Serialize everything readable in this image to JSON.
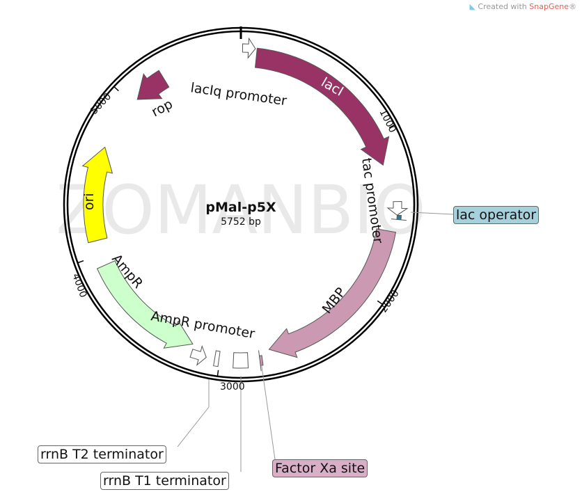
{
  "credit": {
    "prefix": "Created with ",
    "brand": "SnapGene",
    "suffix": "®"
  },
  "watermark": "ZOMANBIO",
  "plasmid": {
    "name": "pMal-p5X",
    "length_label": "5752 bp",
    "length": 5752
  },
  "ticks": [
    {
      "bp": 1000,
      "label": "1000"
    },
    {
      "bp": 2000,
      "label": "2000"
    },
    {
      "bp": 3000,
      "label": "3000"
    },
    {
      "bp": 4000,
      "label": "4000"
    },
    {
      "bp": 5000,
      "label": "5000"
    }
  ],
  "features": [
    {
      "name": "lacIq promoter",
      "start": 10,
      "end": 85,
      "dir": 1,
      "type": "promoter",
      "color": "#ffffff"
    },
    {
      "name": "lacI",
      "start": 95,
      "end": 1190,
      "dir": 1,
      "type": "cds",
      "color": "#993366"
    },
    {
      "name": "tac promoter",
      "start": 1420,
      "end": 1500,
      "dir": 1,
      "type": "promoter",
      "color": "#ffffff"
    },
    {
      "name": "lac operator",
      "start": 1500,
      "end": 1525,
      "dir": 1,
      "type": "site",
      "color": "#2d7a93"
    },
    {
      "name": "MBP",
      "start": 1600,
      "end": 2700,
      "dir": 1,
      "type": "cds",
      "color": "#cc99b3"
    },
    {
      "name": "Factor Xa site",
      "start": 2750,
      "end": 2765,
      "dir": 1,
      "type": "site",
      "color": "#cc99b3"
    },
    {
      "name": "rrnB T1 terminator",
      "start": 2835,
      "end": 2920,
      "dir": 0,
      "type": "terminator",
      "color": "#ffffff"
    },
    {
      "name": "rrnB T2 terminator",
      "start": 3005,
      "end": 3030,
      "dir": 0,
      "type": "terminator",
      "color": "#ffffff"
    },
    {
      "name": "AmpR promoter",
      "start": 3080,
      "end": 3170,
      "dir": -1,
      "type": "promoter",
      "color": "#ffffff"
    },
    {
      "name": "AmpR",
      "start": 3180,
      "end": 3930,
      "dir": -1,
      "type": "cds",
      "color": "#ccffcc"
    },
    {
      "name": "ori",
      "start": 4090,
      "end": 4680,
      "dir": 1,
      "type": "origin",
      "color": "#ffff00"
    },
    {
      "name": "rop",
      "start": 5040,
      "end": 5250,
      "dir": -1,
      "type": "cds",
      "color": "#993366"
    }
  ],
  "callouts": {
    "lac_operator": {
      "text": "lac operator",
      "color": "#a6d1dc"
    },
    "factor_xa": {
      "text": "Factor Xa site",
      "color": "#d9afc8"
    },
    "rrnb_t1": {
      "text": "rrnB T1 terminator",
      "color": "#ffffff"
    },
    "rrnb_t2": {
      "text": "rrnB T2 terminator",
      "color": "#ffffff"
    }
  }
}
